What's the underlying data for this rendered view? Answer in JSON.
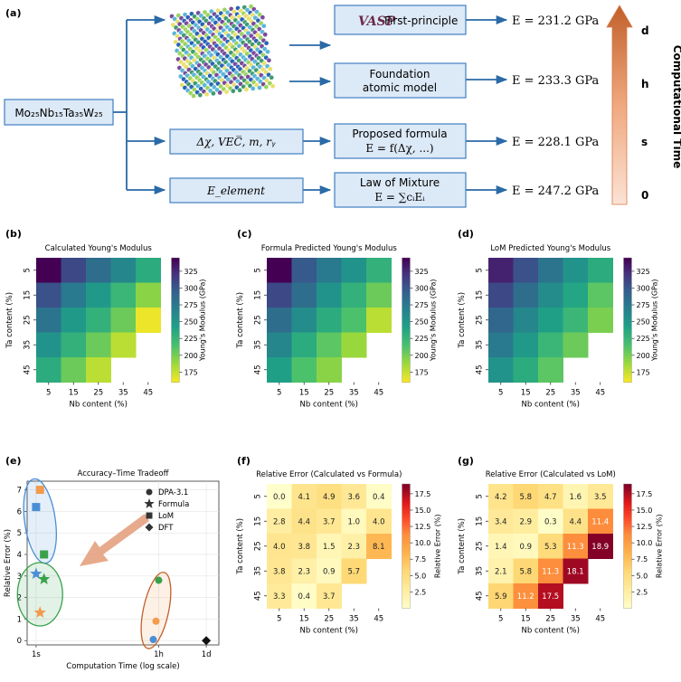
{
  "panel_labels": {
    "a": "(a)",
    "b": "(b)",
    "c": "(c)",
    "d": "(d)",
    "e": "(e)",
    "f": "(f)",
    "g": "(g)"
  },
  "colors": {
    "box_fill": "#dce9f7",
    "box_stroke": "#3f7fc1",
    "arrow": "#2a6aa6",
    "plus_green": "#39a14b",
    "plus_orange": "#f39b4c",
    "plus_blue": "#4a8fd6",
    "plus_black": "#111111",
    "arrow_top": "#c1602a",
    "arrow_bottom": "#fbe2d6"
  },
  "flow": {
    "alloy_label": "Mo₂₅Nb₁₅Ta₃₅W₂₅",
    "inputs": {
      "formula_input": "Δχ, VEC̅, m, rᵧ",
      "lom_input": "E_element"
    },
    "methods": {
      "first_principle": "First-principle",
      "vasp_logo": "VASP",
      "foundation_line1": "Foundation",
      "foundation_line2": "atomic model",
      "formula_line1": "Proposed formula",
      "formula_line2": "E = f(Δχ, ...)",
      "lom_line1": "Law of Mixture",
      "lom_line2": "E = ∑cᵢEᵢ"
    },
    "results": {
      "first_principle": "E = 231.2 GPa",
      "foundation": "E = 233.3 GPa",
      "formula": "E = 228.1 GPa",
      "lom": "E = 247.2 GPa"
    },
    "time_axis": {
      "title": "Computational Time",
      "ticks": [
        "d",
        "h",
        "s",
        "0"
      ]
    }
  },
  "chart_data": [
    {
      "id": "b",
      "type": "heatmap",
      "title": "Calculated Young's Modulus",
      "xlabel": "Nb content (%)",
      "ylabel": "Ta content (%)",
      "x_ticks": [
        "5",
        "15",
        "25",
        "35",
        "45"
      ],
      "y_ticks": [
        "5",
        "15",
        "25",
        "35",
        "45"
      ],
      "values": [
        [
          345,
          310,
          285,
          265,
          235
        ],
        [
          305,
          275,
          250,
          225,
          195
        ],
        [
          280,
          250,
          230,
          205,
          165
        ],
        [
          255,
          230,
          205,
          180,
          null
        ],
        [
          235,
          205,
          180,
          null,
          null
        ]
      ],
      "colorbar": {
        "label": "Young's Modulus (GPa)",
        "ticks": [
          175,
          200,
          225,
          250,
          275,
          300,
          325
        ],
        "vmin": 160,
        "vmax": 345,
        "colormap": "viridis"
      }
    },
    {
      "id": "c",
      "type": "heatmap",
      "title": "Formula Predicted Young's Modulus",
      "xlabel": "Nb content (%)",
      "ylabel": "Ta content (%)",
      "x_ticks": [
        "5",
        "15",
        "25",
        "35",
        "45"
      ],
      "y_ticks": [
        "5",
        "15",
        "25",
        "35",
        "45"
      ],
      "values": [
        [
          345,
          300,
          275,
          255,
          230
        ],
        [
          310,
          285,
          255,
          230,
          205
        ],
        [
          285,
          260,
          235,
          215,
          180
        ],
        [
          265,
          235,
          210,
          190,
          null
        ],
        [
          245,
          215,
          195,
          null,
          null
        ]
      ],
      "colorbar": {
        "label": "Young's Modulus (GPa)",
        "ticks": [
          175,
          200,
          225,
          250,
          275,
          300,
          325
        ],
        "vmin": 160,
        "vmax": 345,
        "colormap": "viridis"
      }
    },
    {
      "id": "d",
      "type": "heatmap",
      "title": "LoM Predicted Young's Modulus",
      "xlabel": "Nb content (%)",
      "ylabel": "Ta content (%)",
      "x_ticks": [
        "5",
        "15",
        "25",
        "35",
        "45"
      ],
      "y_ticks": [
        "5",
        "15",
        "25",
        "35",
        "45"
      ],
      "values": [
        [
          330,
          305,
          280,
          255,
          235
        ],
        [
          310,
          285,
          260,
          240,
          210
        ],
        [
          290,
          265,
          245,
          225,
          200
        ],
        [
          275,
          250,
          225,
          205,
          null
        ],
        [
          255,
          235,
          210,
          null,
          null
        ]
      ],
      "colorbar": {
        "label": "Young's Modulus (GPa)",
        "ticks": [
          175,
          200,
          225,
          250,
          275,
          300,
          325
        ],
        "vmin": 160,
        "vmax": 345,
        "colormap": "viridis"
      }
    },
    {
      "id": "e",
      "type": "scatter",
      "title": "Accuracy–Time Tradeoff",
      "xlabel": "Computation Time (log scale)",
      "ylabel": "Relative Error (%)",
      "x_ticks": [
        "1s",
        "1h",
        "1d"
      ],
      "x_tick_seconds": [
        1,
        3600,
        86400
      ],
      "y_ticks": [
        "0",
        "1",
        "2",
        "3",
        "4",
        "5",
        "6",
        "7"
      ],
      "ylim": [
        -0.2,
        7.4
      ],
      "xlim_seconds": [
        0.55,
        200000
      ],
      "legend": [
        "DPA-3.1",
        "Formula",
        "LoM",
        "DFT"
      ],
      "series": [
        {
          "name": "DPA-3.1",
          "marker": "circle",
          "points": [
            {
              "x": 2500,
              "y": 0.05,
              "color": "#4a8fd6"
            },
            {
              "x": 3000,
              "y": 0.9,
              "color": "#f39b4c"
            },
            {
              "x": 3600,
              "y": 2.8,
              "color": "#39a14b"
            }
          ]
        },
        {
          "name": "Formula",
          "marker": "star",
          "points": [
            {
              "x": 1,
              "y": 3.1,
              "color": "#4a8fd6"
            },
            {
              "x": 1.3,
              "y": 1.3,
              "color": "#f39b4c"
            },
            {
              "x": 1.7,
              "y": 2.85,
              "color": "#39a14b"
            }
          ]
        },
        {
          "name": "LoM",
          "marker": "square",
          "points": [
            {
              "x": 1,
              "y": 6.2,
              "color": "#4a8fd6"
            },
            {
              "x": 1.3,
              "y": 7.0,
              "color": "#f39b4c"
            },
            {
              "x": 1.7,
              "y": 4.0,
              "color": "#39a14b"
            }
          ]
        },
        {
          "name": "DFT",
          "marker": "diamond",
          "points": [
            {
              "x": 86400,
              "y": 0.0,
              "color": "#111111"
            }
          ]
        }
      ]
    },
    {
      "id": "f",
      "type": "heatmap",
      "title": "Relative Error (Calculated vs Formula)",
      "xlabel": "Nb content (%)",
      "ylabel": "Ta content (%)",
      "x_ticks": [
        "5",
        "15",
        "25",
        "35",
        "45"
      ],
      "y_ticks": [
        "5",
        "15",
        "25",
        "35",
        "45"
      ],
      "values": [
        [
          0.0,
          4.1,
          4.9,
          3.6,
          0.4
        ],
        [
          2.8,
          4.4,
          3.7,
          1.0,
          4.0
        ],
        [
          4.0,
          3.8,
          1.5,
          2.3,
          8.1
        ],
        [
          3.8,
          2.3,
          0.9,
          5.7,
          null
        ],
        [
          3.3,
          0.4,
          3.7,
          null,
          null
        ]
      ],
      "colorbar": {
        "label": "Relative Error (%)",
        "ticks": [
          2.5,
          5.0,
          7.5,
          10.0,
          12.5,
          15.0,
          17.5
        ],
        "vmin": 0,
        "vmax": 19,
        "colormap": "ylorrd"
      }
    },
    {
      "id": "g",
      "type": "heatmap",
      "title": "Relative Error (Calculated vs LoM)",
      "xlabel": "Nb content (%)",
      "ylabel": "Ta content (%)",
      "x_ticks": [
        "5",
        "15",
        "25",
        "35",
        "45"
      ],
      "y_ticks": [
        "5",
        "15",
        "25",
        "35",
        "45"
      ],
      "values": [
        [
          4.2,
          5.8,
          4.7,
          1.6,
          3.5
        ],
        [
          3.4,
          2.9,
          0.3,
          4.4,
          11.4
        ],
        [
          1.4,
          0.9,
          5.3,
          11.3,
          18.9
        ],
        [
          2.1,
          5.8,
          11.3,
          18.1,
          null
        ],
        [
          5.9,
          11.2,
          17.5,
          null,
          null
        ]
      ],
      "colorbar": {
        "label": "Relative Error (%)",
        "ticks": [
          2.5,
          5.0,
          7.5,
          10.0,
          12.5,
          15.0,
          17.5
        ],
        "vmin": 0,
        "vmax": 19,
        "colormap": "ylorrd"
      }
    }
  ]
}
